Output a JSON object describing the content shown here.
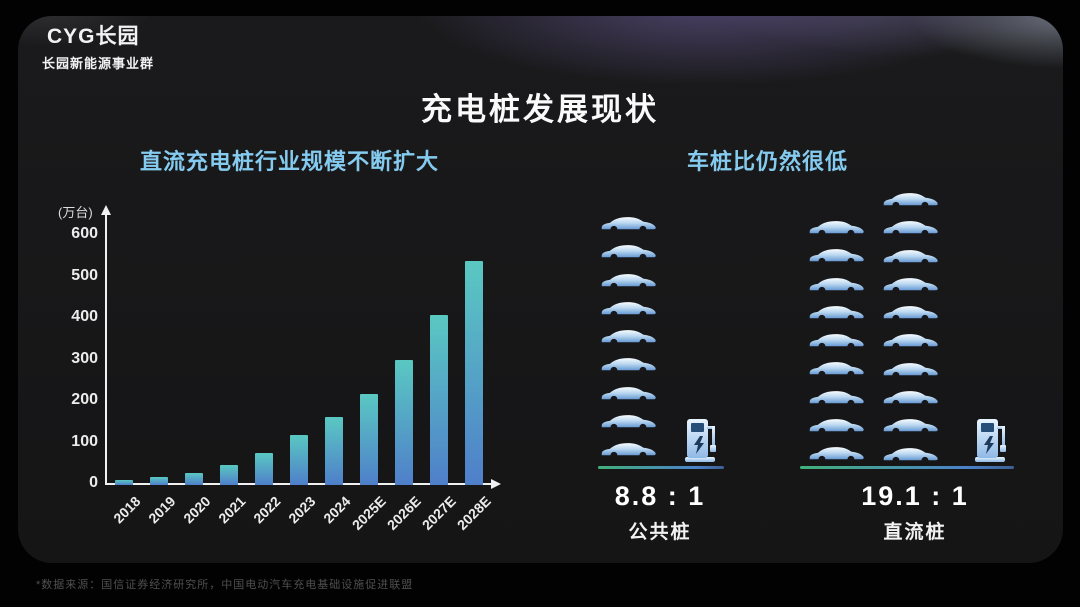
{
  "slide": {
    "logo_line1": "CYG长园",
    "logo_line2": "长园新能源事业群",
    "title": "充电桩发展现状",
    "footnote": "*数据来源：国信证券经济研究所，中国电动汽车充电基础设施促进联盟"
  },
  "left_section": {
    "heading": "直流充电桩行业规模不断扩大"
  },
  "right_section": {
    "heading": "车桩比仍然很低",
    "groups": [
      {
        "ratio": "8.8 : 1",
        "label": "公共桩",
        "car_count": 9,
        "columns": [
          9
        ],
        "charger_count": 1
      },
      {
        "ratio": "19.1 : 1",
        "label": "直流桩",
        "car_count": 19,
        "columns": [
          9,
          10
        ],
        "charger_count": 1
      }
    ]
  },
  "chart_data": {
    "type": "bar",
    "title": "直流充电桩行业规模不断扩大",
    "unit_label": "(万台)",
    "categories": [
      "2018",
      "2019",
      "2020",
      "2021",
      "2022",
      "2023",
      "2024",
      "2025E",
      "2026E",
      "2027E",
      "2028E"
    ],
    "values": [
      12,
      20,
      30,
      48,
      78,
      120,
      165,
      220,
      300,
      410,
      540
    ],
    "xlabel": "",
    "ylabel": "(万台)",
    "yticks": [
      600,
      500,
      400,
      300,
      200,
      100,
      0
    ],
    "ylim": [
      0,
      600
    ],
    "grid": false,
    "legend": "none",
    "bar_gradient_top": "#5ac8c2",
    "bar_gradient_bottom": "#4f7fca"
  },
  "colors": {
    "background": "#020202",
    "panel": "#1a1a1c",
    "accent_heading": "#85cbef",
    "purple_glow": "#7c6ab2",
    "baseline_green": "#41b07c",
    "baseline_blue": "#4b82c9",
    "car_fill_top": "#f8fcff",
    "car_fill_bottom": "#6699d4"
  }
}
